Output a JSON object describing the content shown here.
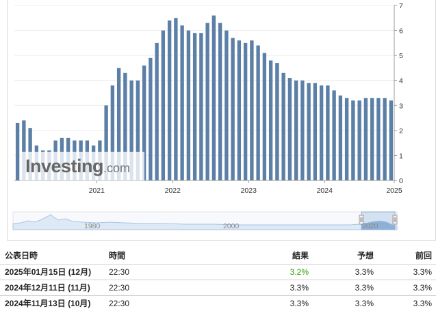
{
  "chart_data": {
    "type": "bar",
    "ylim": [
      0,
      7
    ],
    "yticks": [
      "0",
      "1",
      "2",
      "3",
      "4",
      "5",
      "6",
      "7"
    ],
    "year_labels": [
      {
        "label": "2021",
        "at_bar": 13
      },
      {
        "label": "2022",
        "at_bar": 25
      },
      {
        "label": "2023",
        "at_bar": 37
      },
      {
        "label": "2024",
        "at_bar": 49
      },
      {
        "label": "2025",
        "at_bar": 60
      }
    ],
    "values": [
      2.3,
      2.4,
      2.1,
      1.4,
      1.2,
      1.2,
      1.6,
      1.7,
      1.7,
      1.6,
      1.6,
      1.6,
      1.4,
      1.6,
      3.0,
      3.8,
      4.5,
      4.3,
      4.0,
      4.0,
      4.6,
      4.9,
      5.5,
      6.0,
      6.4,
      6.5,
      6.2,
      6.0,
      5.9,
      5.9,
      6.3,
      6.6,
      6.3,
      6.0,
      5.7,
      5.6,
      5.5,
      5.6,
      5.4,
      5.1,
      4.8,
      4.7,
      4.3,
      4.1,
      4.0,
      4.0,
      3.9,
      3.9,
      3.8,
      3.8,
      3.6,
      3.4,
      3.3,
      3.2,
      3.2,
      3.3,
      3.3,
      3.3,
      3.3,
      3.2
    ],
    "bar_color": "#5b7fa7"
  },
  "navigator": {
    "labels": [
      "1980",
      "2000",
      "2020"
    ]
  },
  "logo": {
    "word": "Investing",
    "suffix": ".com"
  },
  "table": {
    "headers": {
      "date": "公表日時",
      "time": "時間",
      "actual": "結果",
      "forecast": "予想",
      "previous": "前回"
    },
    "rows": [
      {
        "date": "2025年01月15日 (12月)",
        "time": "22:30",
        "actual": "3.2%",
        "forecast": "3.3%",
        "previous": "3.3%",
        "actual_color": "#2ea300"
      },
      {
        "date": "2024年12月11日 (11月)",
        "time": "22:30",
        "actual": "3.3%",
        "forecast": "3.3%",
        "previous": "3.3%",
        "actual_color": "#222222"
      },
      {
        "date": "2024年11月13日 (10月)",
        "time": "22:30",
        "actual": "3.3%",
        "forecast": "3.3%",
        "previous": "3.3%",
        "actual_color": "#222222"
      }
    ]
  }
}
